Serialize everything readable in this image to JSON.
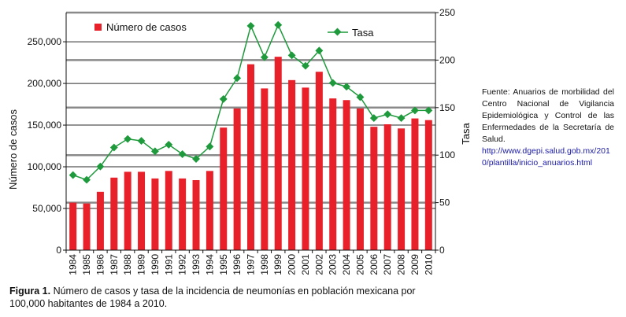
{
  "chart_data": {
    "type": "bar",
    "categories": [
      "1984",
      "1985",
      "1986",
      "1987",
      "1988",
      "1989",
      "1990",
      "1991",
      "1992",
      "1993",
      "1994",
      "1995",
      "1996",
      "1997",
      "1998",
      "1999",
      "2000",
      "2001",
      "2002",
      "2003",
      "2004",
      "2005",
      "2006",
      "2007",
      "2008",
      "2009",
      "2010"
    ],
    "series": [
      {
        "name": "Número de casos",
        "type": "bar",
        "axis": "left",
        "color": "#e8202a",
        "values": [
          57000,
          56000,
          70000,
          87000,
          94000,
          94000,
          86000,
          95000,
          86000,
          84000,
          95000,
          147000,
          170000,
          223000,
          194000,
          232000,
          204000,
          195000,
          214000,
          182000,
          180000,
          170000,
          148000,
          151000,
          146000,
          158000,
          156000
        ]
      },
      {
        "name": "Tasa",
        "type": "line",
        "axis": "right",
        "color": "#1e9a3c",
        "marker": "diamond",
        "values": [
          79,
          74,
          88,
          108,
          117,
          115,
          104,
          111,
          101,
          96,
          109,
          159,
          181,
          236,
          203,
          237,
          205,
          194,
          210,
          176,
          172,
          161,
          139,
          143,
          139,
          147,
          147
        ]
      }
    ],
    "ylabel": "Número de casos",
    "ylabel_right": "Tasa",
    "ylim": [
      0,
      285000
    ],
    "ylim_right": [
      0,
      250
    ],
    "yticks": [
      "0",
      "50,000",
      "100,000",
      "150,000",
      "200,000",
      "250,000"
    ],
    "yticks_right": [
      "0",
      "50",
      "100",
      "150",
      "200",
      "250"
    ],
    "grid": "horizontal",
    "legend_placement": "top"
  },
  "source_note": {
    "text": "Fuente: Anuarios de morbilidad del Centro Nacional de Vigilancia Epidemiológica y Control de las Enfermedades de la Secretaría de Salud.",
    "link": "http://www.dgepi.salud.gob.mx/2010/plantilla/inicio_anuarios.html"
  },
  "caption": {
    "label": "Figura 1.",
    "text": " Número de casos y tasa de la incidencia de neumonías en población mexicana por 100,000 habitantes de 1984 a 2010."
  }
}
